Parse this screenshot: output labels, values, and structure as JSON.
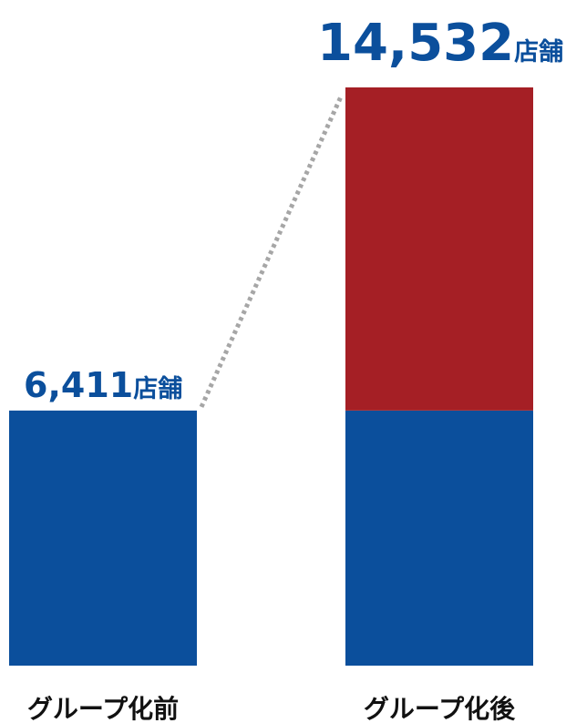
{
  "chart_data": {
    "type": "bar",
    "stacked": true,
    "categories": [
      "グループ化前",
      "グループ化後"
    ],
    "series": [
      {
        "values": [
          6411,
          6411
        ]
      },
      {
        "values": [
          0,
          8121
        ]
      }
    ],
    "totals": [
      {
        "number": "6,411",
        "unit": "店舗"
      },
      {
        "number": "14,532",
        "unit": "店舗"
      }
    ],
    "connector": "dotted line from top of first bar to top of second bar",
    "ylim": [
      0,
      14532
    ],
    "grid": false,
    "legend": "none"
  },
  "colors": {
    "blue": "#0b4f9c",
    "red": "#a51f25",
    "label_blue": "#0b4f9c",
    "category_text": "#111111",
    "connector": "#a6a6a6"
  }
}
